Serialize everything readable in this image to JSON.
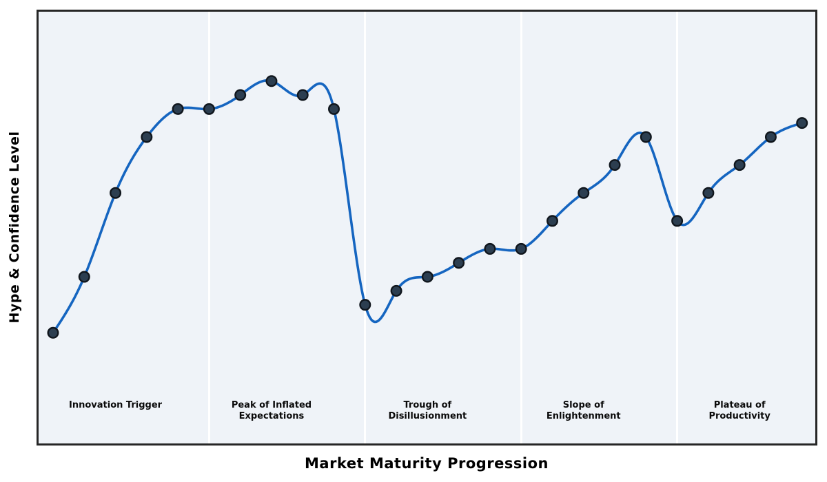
{
  "chart_data": {
    "type": "line",
    "title": "",
    "xlabel": "Market Maturity Progression",
    "ylabel": "Hype & Confidence Level",
    "x": [
      0,
      1,
      2,
      3,
      4,
      5,
      6,
      7,
      8,
      9,
      10,
      11,
      12,
      13,
      14,
      15,
      16,
      17,
      18,
      19,
      20,
      21,
      22,
      23,
      24
    ],
    "values": [
      50,
      60,
      75,
      85,
      90,
      90,
      92.5,
      95,
      92.5,
      90,
      55,
      57.5,
      60,
      62.5,
      65,
      65,
      70,
      75,
      80,
      85,
      70,
      75,
      80,
      85,
      87.5
    ],
    "curve_style": "smooth natural cubic spline through points with circular markers",
    "xlim": [
      -0.65,
      24.4
    ],
    "ylim": [
      30,
      108
    ],
    "grid": false,
    "ticks": "none",
    "legend": "none",
    "phases": [
      {
        "label_lines": [
          "Innovation Trigger"
        ],
        "x_start": 0,
        "x_end": 5,
        "label_x": 2
      },
      {
        "label_lines": [
          "Peak of Inflated",
          "Expectations"
        ],
        "x_start": 5,
        "x_end": 10,
        "label_x": 7
      },
      {
        "label_lines": [
          "Trough of",
          "Disillusionment"
        ],
        "x_start": 10,
        "x_end": 15,
        "label_x": 12
      },
      {
        "label_lines": [
          "Slope of",
          "Enlightenment"
        ],
        "x_start": 15,
        "x_end": 20,
        "label_x": 17
      },
      {
        "label_lines": [
          "Plateau of",
          "Productivity"
        ],
        "x_start": 20,
        "x_end": 24,
        "label_x": 22
      }
    ],
    "colors": {
      "line": "#1565c0",
      "marker_fill": "#2c3e50",
      "marker_edge": "#10161d",
      "plot_background": "#eff3f8",
      "phase_divider": "#ffffff",
      "frame": "#262626",
      "text": "#000000",
      "figure_background": "#ffffff"
    }
  }
}
